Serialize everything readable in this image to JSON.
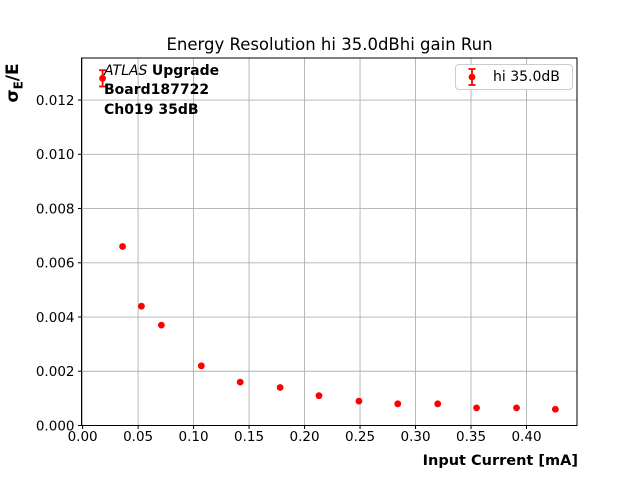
{
  "figure": {
    "annotation": {
      "line1_italic": "ATLAS",
      "line1_bold": "Upgrade",
      "line2": "Board187722",
      "line3": "Ch019 35dB"
    },
    "ylabel_parts": {
      "sigma": "σ",
      "subscript": "E",
      "rest": "/E"
    }
  },
  "chart_data": {
    "type": "scatter",
    "title": "Energy Resolution hi 35.0dBhi gain Run",
    "xlabel": "Input Current [mA]",
    "ylabel": "σ_E/E",
    "legend_position": "upper right",
    "grid": true,
    "marker_color": "#ff0000",
    "grid_color": "#b0b0b0",
    "xlim": [
      -0.001,
      0.4455
    ],
    "ylim": [
      0,
      0.01355
    ],
    "xticks": [
      0.0,
      0.05,
      0.1,
      0.15,
      0.2,
      0.25,
      0.3,
      0.35,
      0.4
    ],
    "xtick_labels": [
      "0.00",
      "0.05",
      "0.10",
      "0.15",
      "0.20",
      "0.25",
      "0.30",
      "0.35",
      "0.40"
    ],
    "yticks": [
      0.0,
      0.002,
      0.004,
      0.006,
      0.008,
      0.01,
      0.012
    ],
    "ytick_labels": [
      "0.000",
      "0.002",
      "0.004",
      "0.006",
      "0.008",
      "0.010",
      "0.012"
    ],
    "series": [
      {
        "name": "hi 35.0dB",
        "x": [
          0.018,
          0.036,
          0.053,
          0.071,
          0.107,
          0.142,
          0.178,
          0.213,
          0.249,
          0.284,
          0.32,
          0.355,
          0.391,
          0.426
        ],
        "y": [
          0.0128,
          0.0066,
          0.0044,
          0.0037,
          0.0022,
          0.0016,
          0.0014,
          0.0011,
          0.0009,
          0.0008,
          0.0008,
          0.00065,
          0.00065,
          0.0006
        ],
        "yerr": [
          0.0003,
          0,
          0,
          0,
          0,
          0,
          0,
          0,
          0,
          0,
          0,
          0,
          0,
          0
        ]
      }
    ]
  }
}
